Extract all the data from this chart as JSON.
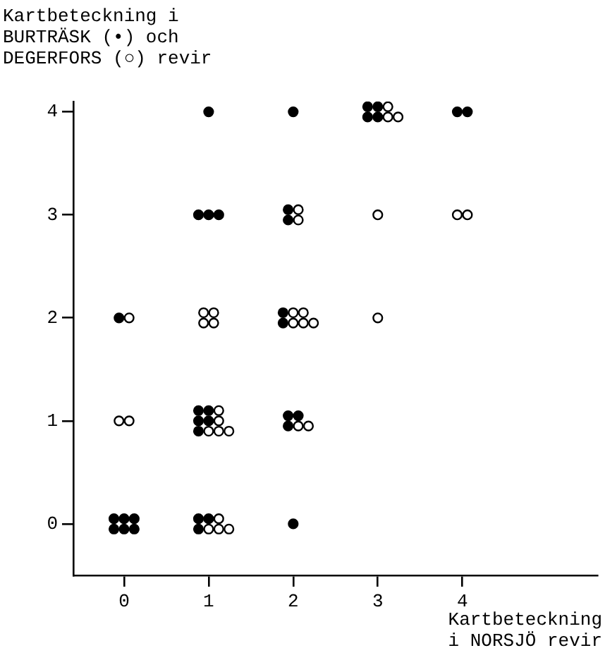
{
  "chart_data": {
    "type": "scatter",
    "ylabel": "Kartbeteckning i\nBURTRÄSK (•) och\nDEGERFORS (○) revir",
    "xlabel": "Kartbeteckning\ni NORSJÖ revir",
    "xlim": [
      -0.6,
      5.6
    ],
    "ylim": [
      -0.5,
      4.1
    ],
    "xticks": [
      0,
      1,
      2,
      3,
      4
    ],
    "yticks": [
      0,
      1,
      2,
      3,
      4
    ],
    "grid": false,
    "marker": "circle",
    "series": [
      {
        "color": "#000000",
        "x": [
          -0.12,
          0,
          0.12,
          -0.12,
          0,
          0.12,
          0.88,
          1,
          0.88,
          2,
          0.88,
          1,
          0.88,
          1,
          0.88,
          1.94,
          2.06,
          1.94,
          -0.06,
          1.88,
          1.88,
          0.88,
          1,
          1.12,
          1.94,
          1.94,
          1,
          2,
          2.88,
          3,
          2.88,
          3,
          3.94,
          4.06
        ],
        "values": [
          0.05,
          0.05,
          0.05,
          -0.05,
          -0.05,
          -0.05,
          0.05,
          0.05,
          -0.05,
          0,
          1.1,
          1.1,
          1,
          1,
          0.9,
          1.05,
          1.05,
          0.95,
          2,
          2.05,
          1.95,
          3,
          3,
          3,
          3.05,
          2.95,
          4,
          4,
          4.05,
          4.05,
          3.95,
          3.95,
          4,
          4
        ]
      },
      {
        "color": "#ffffff",
        "x": [
          1.12,
          1,
          1.12,
          1.24,
          -0.06,
          0.06,
          1.12,
          1.12,
          1,
          1.12,
          1.24,
          2.06,
          2.18,
          0.06,
          0.94,
          1.06,
          0.94,
          1.06,
          2,
          2.12,
          2,
          2.12,
          2.24,
          3,
          2.06,
          2.06,
          3,
          3.94,
          4.06,
          3.12,
          3.12,
          3.24
        ],
        "values": [
          0.05,
          -0.05,
          -0.05,
          -0.05,
          1,
          1,
          1.1,
          1,
          0.9,
          0.9,
          0.9,
          0.95,
          0.95,
          2,
          2.05,
          2.05,
          1.95,
          1.95,
          2.05,
          2.05,
          1.95,
          1.95,
          1.95,
          2,
          3.05,
          2.95,
          3,
          3,
          3,
          4.05,
          3.95,
          3.95
        ]
      }
    ]
  }
}
